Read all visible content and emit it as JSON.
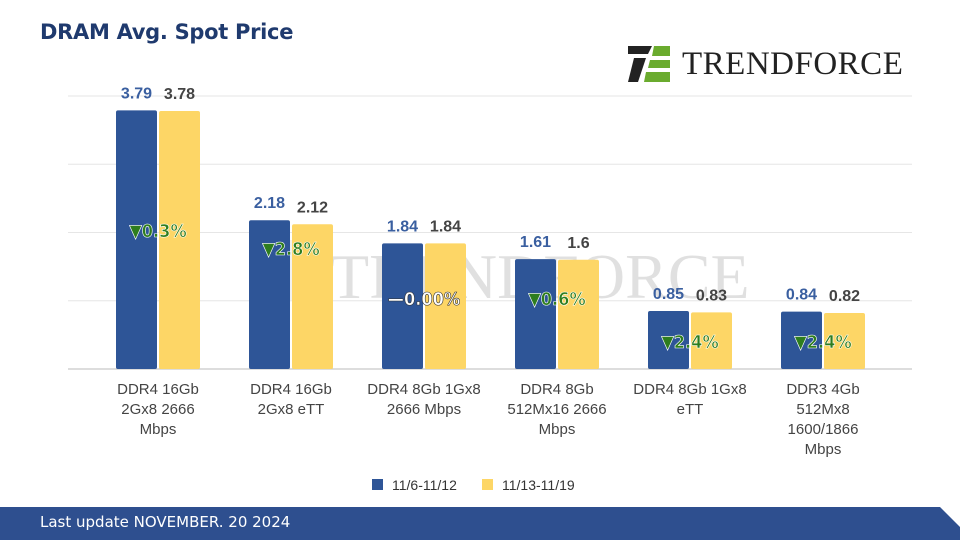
{
  "title": "DRAM Avg. Spot Price",
  "logo": "TRENDFORCE",
  "footer": "Last update NOVEMBER. 20  2024",
  "colors": {
    "series1": "#2e5597",
    "series2": "#fdd666",
    "change": "#2e7d1e"
  },
  "chart_data": {
    "type": "bar",
    "title": "DRAM Avg. Spot Price",
    "categories": [
      [
        "DDR4 16Gb",
        "2Gx8 2666",
        "Mbps"
      ],
      [
        "DDR4 16Gb",
        "2Gx8 eTT"
      ],
      [
        "DDR4 8Gb 1Gx8",
        "2666 Mbps"
      ],
      [
        "DDR4 8Gb",
        "512Mx16 2666",
        "Mbps"
      ],
      [
        "DDR4 8Gb 1Gx8",
        "eTT"
      ],
      [
        "DDR3 4Gb",
        "512Mx8",
        "1600/1866",
        "Mbps"
      ]
    ],
    "series": [
      {
        "name": "11/6-11/12",
        "values": [
          3.79,
          2.18,
          1.84,
          1.61,
          0.85,
          0.84
        ],
        "labels": [
          "3.79",
          "2.18",
          "1.84",
          "1.61",
          "0.85",
          "0.84"
        ]
      },
      {
        "name": "11/13-11/19",
        "values": [
          3.78,
          2.12,
          1.84,
          1.6,
          0.83,
          0.82
        ],
        "labels": [
          "3.78",
          "2.12",
          "1.84",
          "1.6",
          "0.83",
          "0.82"
        ]
      }
    ],
    "changes": [
      {
        "dir": "down",
        "text": "0.3%"
      },
      {
        "dir": "down",
        "text": "2.8%"
      },
      {
        "dir": "flat",
        "text": "0.00%"
      },
      {
        "dir": "down",
        "text": "0.6%"
      },
      {
        "dir": "down",
        "text": "2.4%"
      },
      {
        "dir": "down",
        "text": "2.4%"
      }
    ],
    "ylim": [
      0,
      4
    ],
    "grid": true,
    "legend": "bottom"
  }
}
